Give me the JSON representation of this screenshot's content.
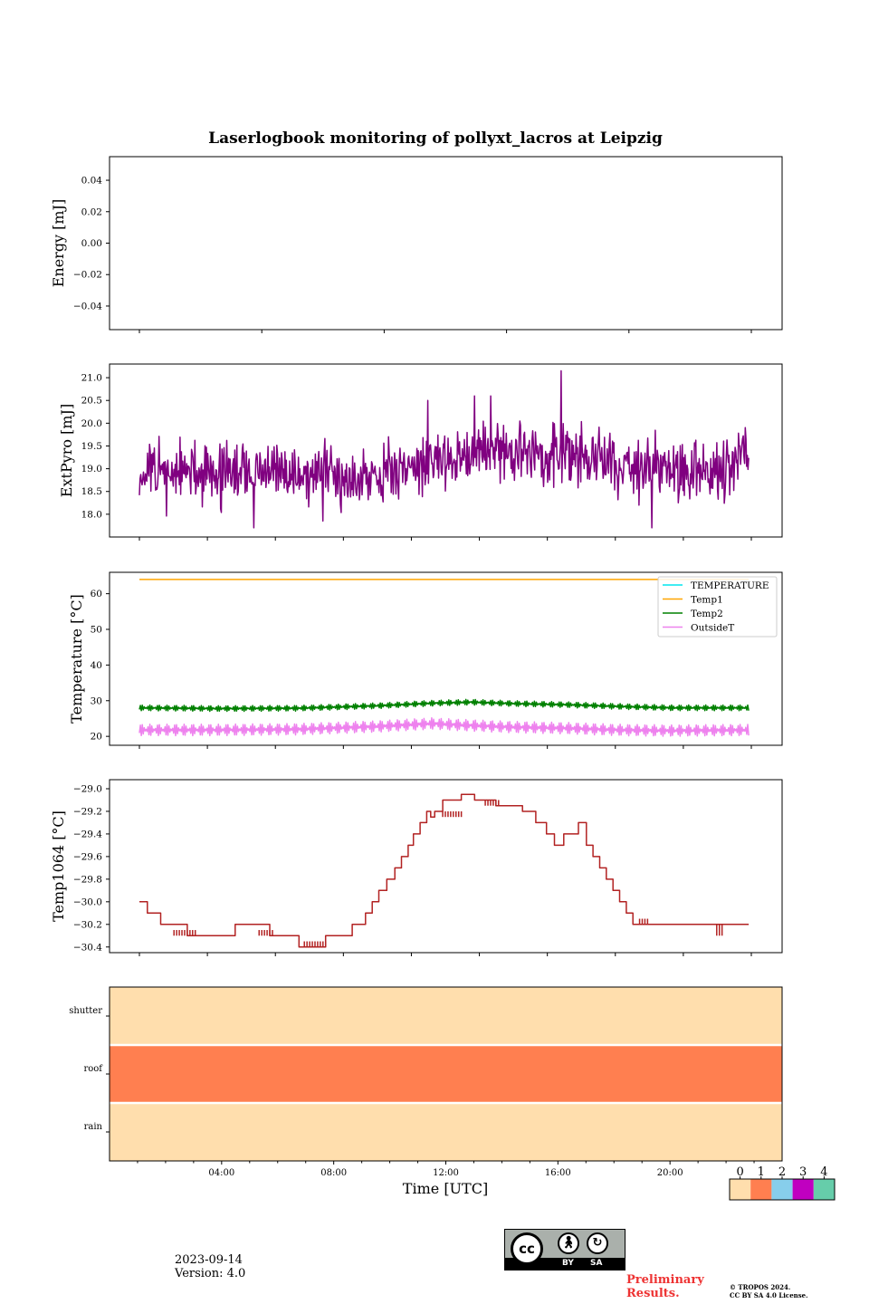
{
  "figure": {
    "title": "Laserlogbook monitoring of pollyxt_lacros at Leipzig",
    "date": "2023-09-14",
    "version": "Version: 4.0",
    "preliminary": "Preliminary Results.",
    "copyright_line1": "© TROPOS 2024.",
    "copyright_line2": "CC BY SA 4.0 License.",
    "license_badge": {
      "cc": "cc",
      "by": "BY",
      "sa": "SA"
    }
  },
  "chart_data": [
    {
      "type": "line",
      "ylabel": "Energy [mJ]",
      "ylim": [
        -0.055,
        0.055
      ],
      "yticks": [
        0.04,
        0.02,
        0.0,
        -0.02,
        -0.04
      ],
      "ytick_labels": [
        "0.04",
        "0.02",
        "0.00",
        "−0.02",
        "−0.04"
      ],
      "series": []
    },
    {
      "type": "line",
      "ylabel": "ExtPyro [mJ]",
      "ylim": [
        17.5,
        21.3
      ],
      "yticks": [
        21.0,
        20.5,
        20.0,
        19.5,
        19.0,
        18.5,
        18.0
      ],
      "ytick_labels": [
        "21.0",
        "20.5",
        "20.0",
        "19.5",
        "19.0",
        "18.5",
        "18.0"
      ],
      "series": [
        {
          "color": "#800080",
          "noise": true,
          "x": [
            1.0,
            3.0,
            5.0,
            7.0,
            9.0,
            11.0,
            12.0,
            13.0,
            14.0,
            15.0,
            16.0,
            17.0,
            18.0,
            19.0,
            20.0,
            21.0,
            23.0,
            23.9
          ],
          "y": [
            18.9,
            18.9,
            18.9,
            18.9,
            18.85,
            19.0,
            19.15,
            19.3,
            19.4,
            19.35,
            19.3,
            19.3,
            19.25,
            19.15,
            19.0,
            19.0,
            18.9,
            19.5
          ],
          "spikes": [
            [
              16.85,
              21.15
            ],
            [
              20.25,
              17.7
            ],
            [
              5.3,
              17.7
            ],
            [
              13.6,
              20.6
            ],
            [
              11.85,
              20.5
            ],
            [
              14.2,
              20.6
            ],
            [
              7.9,
              17.85
            ]
          ]
        }
      ]
    },
    {
      "type": "line",
      "ylabel": "Temperature [°C]",
      "ylim": [
        17.5,
        66
      ],
      "yticks": [
        60,
        50,
        40,
        30,
        20
      ],
      "ytick_labels": [
        "60",
        "50",
        "40",
        "30",
        "20"
      ],
      "legend": "top-right",
      "series": [
        {
          "name": "TEMPERATURE",
          "color": "#00e5ee",
          "x": [],
          "y": []
        },
        {
          "name": "Temp1",
          "color": "#ffa500",
          "x": [
            1.0,
            23.9
          ],
          "y": [
            64.0,
            64.0
          ]
        },
        {
          "name": "Temp2",
          "color": "#008000",
          "osc": 0.8,
          "x": [
            1.0,
            4.0,
            7.0,
            10.0,
            12.0,
            13.5,
            15.0,
            17.0,
            19.0,
            21.0,
            23.9
          ],
          "y": [
            28.0,
            27.8,
            27.9,
            28.6,
            29.3,
            29.6,
            29.2,
            28.9,
            28.4,
            28.0,
            28.0
          ]
        },
        {
          "name": "OutsideT",
          "color": "#ee82ee",
          "osc": 1.6,
          "x": [
            1.0,
            4.0,
            7.0,
            10.0,
            12.0,
            13.0,
            15.0,
            17.0,
            19.0,
            21.0,
            23.9
          ],
          "y": [
            21.8,
            21.8,
            22.0,
            22.8,
            23.6,
            23.2,
            22.6,
            22.3,
            21.8,
            21.6,
            21.8
          ]
        }
      ]
    },
    {
      "type": "line",
      "ylabel": "Temp1064 [°C]",
      "ylim": [
        -30.45,
        -28.92
      ],
      "yticks": [
        -29.0,
        -29.2,
        -29.4,
        -29.6,
        -29.8,
        -30.0,
        -30.2,
        -30.4
      ],
      "ytick_labels": [
        "−29.0",
        "−29.2",
        "−29.4",
        "−29.6",
        "−29.8",
        "−30.0",
        "−30.2",
        "−30.4"
      ],
      "series": [
        {
          "color": "#b22222",
          "step": true,
          "x": [
            1.0,
            1.3,
            1.8,
            2.8,
            4.6,
            5.9,
            7.0,
            8.0,
            9.0,
            9.5,
            9.75,
            10.0,
            10.3,
            10.6,
            10.85,
            11.1,
            11.3,
            11.55,
            11.8,
            11.95,
            12.1,
            12.4,
            13.1,
            13.6,
            14.4,
            15.4,
            15.9,
            16.3,
            16.6,
            16.95,
            17.5,
            17.8,
            18.05,
            18.3,
            18.55,
            18.8,
            19.05,
            19.3,
            19.55,
            19.8,
            20.1,
            20.5,
            23.9
          ],
          "y": [
            -30.0,
            -30.1,
            -30.2,
            -30.3,
            -30.2,
            -30.3,
            -30.4,
            -30.3,
            -30.2,
            -30.1,
            -30.0,
            -29.9,
            -29.8,
            -29.7,
            -29.6,
            -29.5,
            -29.4,
            -29.3,
            -29.2,
            -29.25,
            -29.2,
            -29.1,
            -29.05,
            -29.1,
            -29.15,
            -29.2,
            -29.3,
            -29.4,
            -29.5,
            -29.4,
            -29.3,
            -29.5,
            -29.6,
            -29.7,
            -29.8,
            -29.9,
            -30.0,
            -30.1,
            -30.2,
            -30.2,
            -30.2,
            -30.2,
            -30.2
          ],
          "noise_ranges": [
            [
              2.3,
              3.2,
              -30.25,
              -30.3
            ],
            [
              5.5,
              6.0,
              -30.25,
              -30.3
            ],
            [
              7.2,
              8.0,
              -30.35,
              -30.4
            ],
            [
              12.4,
              13.1,
              -29.2,
              -29.25
            ],
            [
              14.0,
              14.5,
              -29.1,
              -29.15
            ],
            [
              19.8,
              20.2,
              -30.15,
              -30.2
            ],
            [
              22.7,
              23.0,
              -30.2,
              -30.3
            ]
          ]
        }
      ]
    },
    {
      "type": "heatmap",
      "rows": [
        "shutter",
        "roof",
        "rain"
      ],
      "row_values": [
        0,
        1,
        0
      ],
      "x_ticks": [
        "04:00",
        "08:00",
        "12:00",
        "16:00",
        "20:00"
      ],
      "x_tick_hours": [
        4,
        8,
        12,
        16,
        20
      ],
      "xlabel": "Time [UTC]",
      "colorbar": {
        "labels": [
          "0",
          "1",
          "2",
          "3",
          "4"
        ],
        "colors": [
          "#ffdead",
          "#ff7f50",
          "#87ceeb",
          "#c000c0",
          "#66cdaa"
        ]
      }
    }
  ]
}
